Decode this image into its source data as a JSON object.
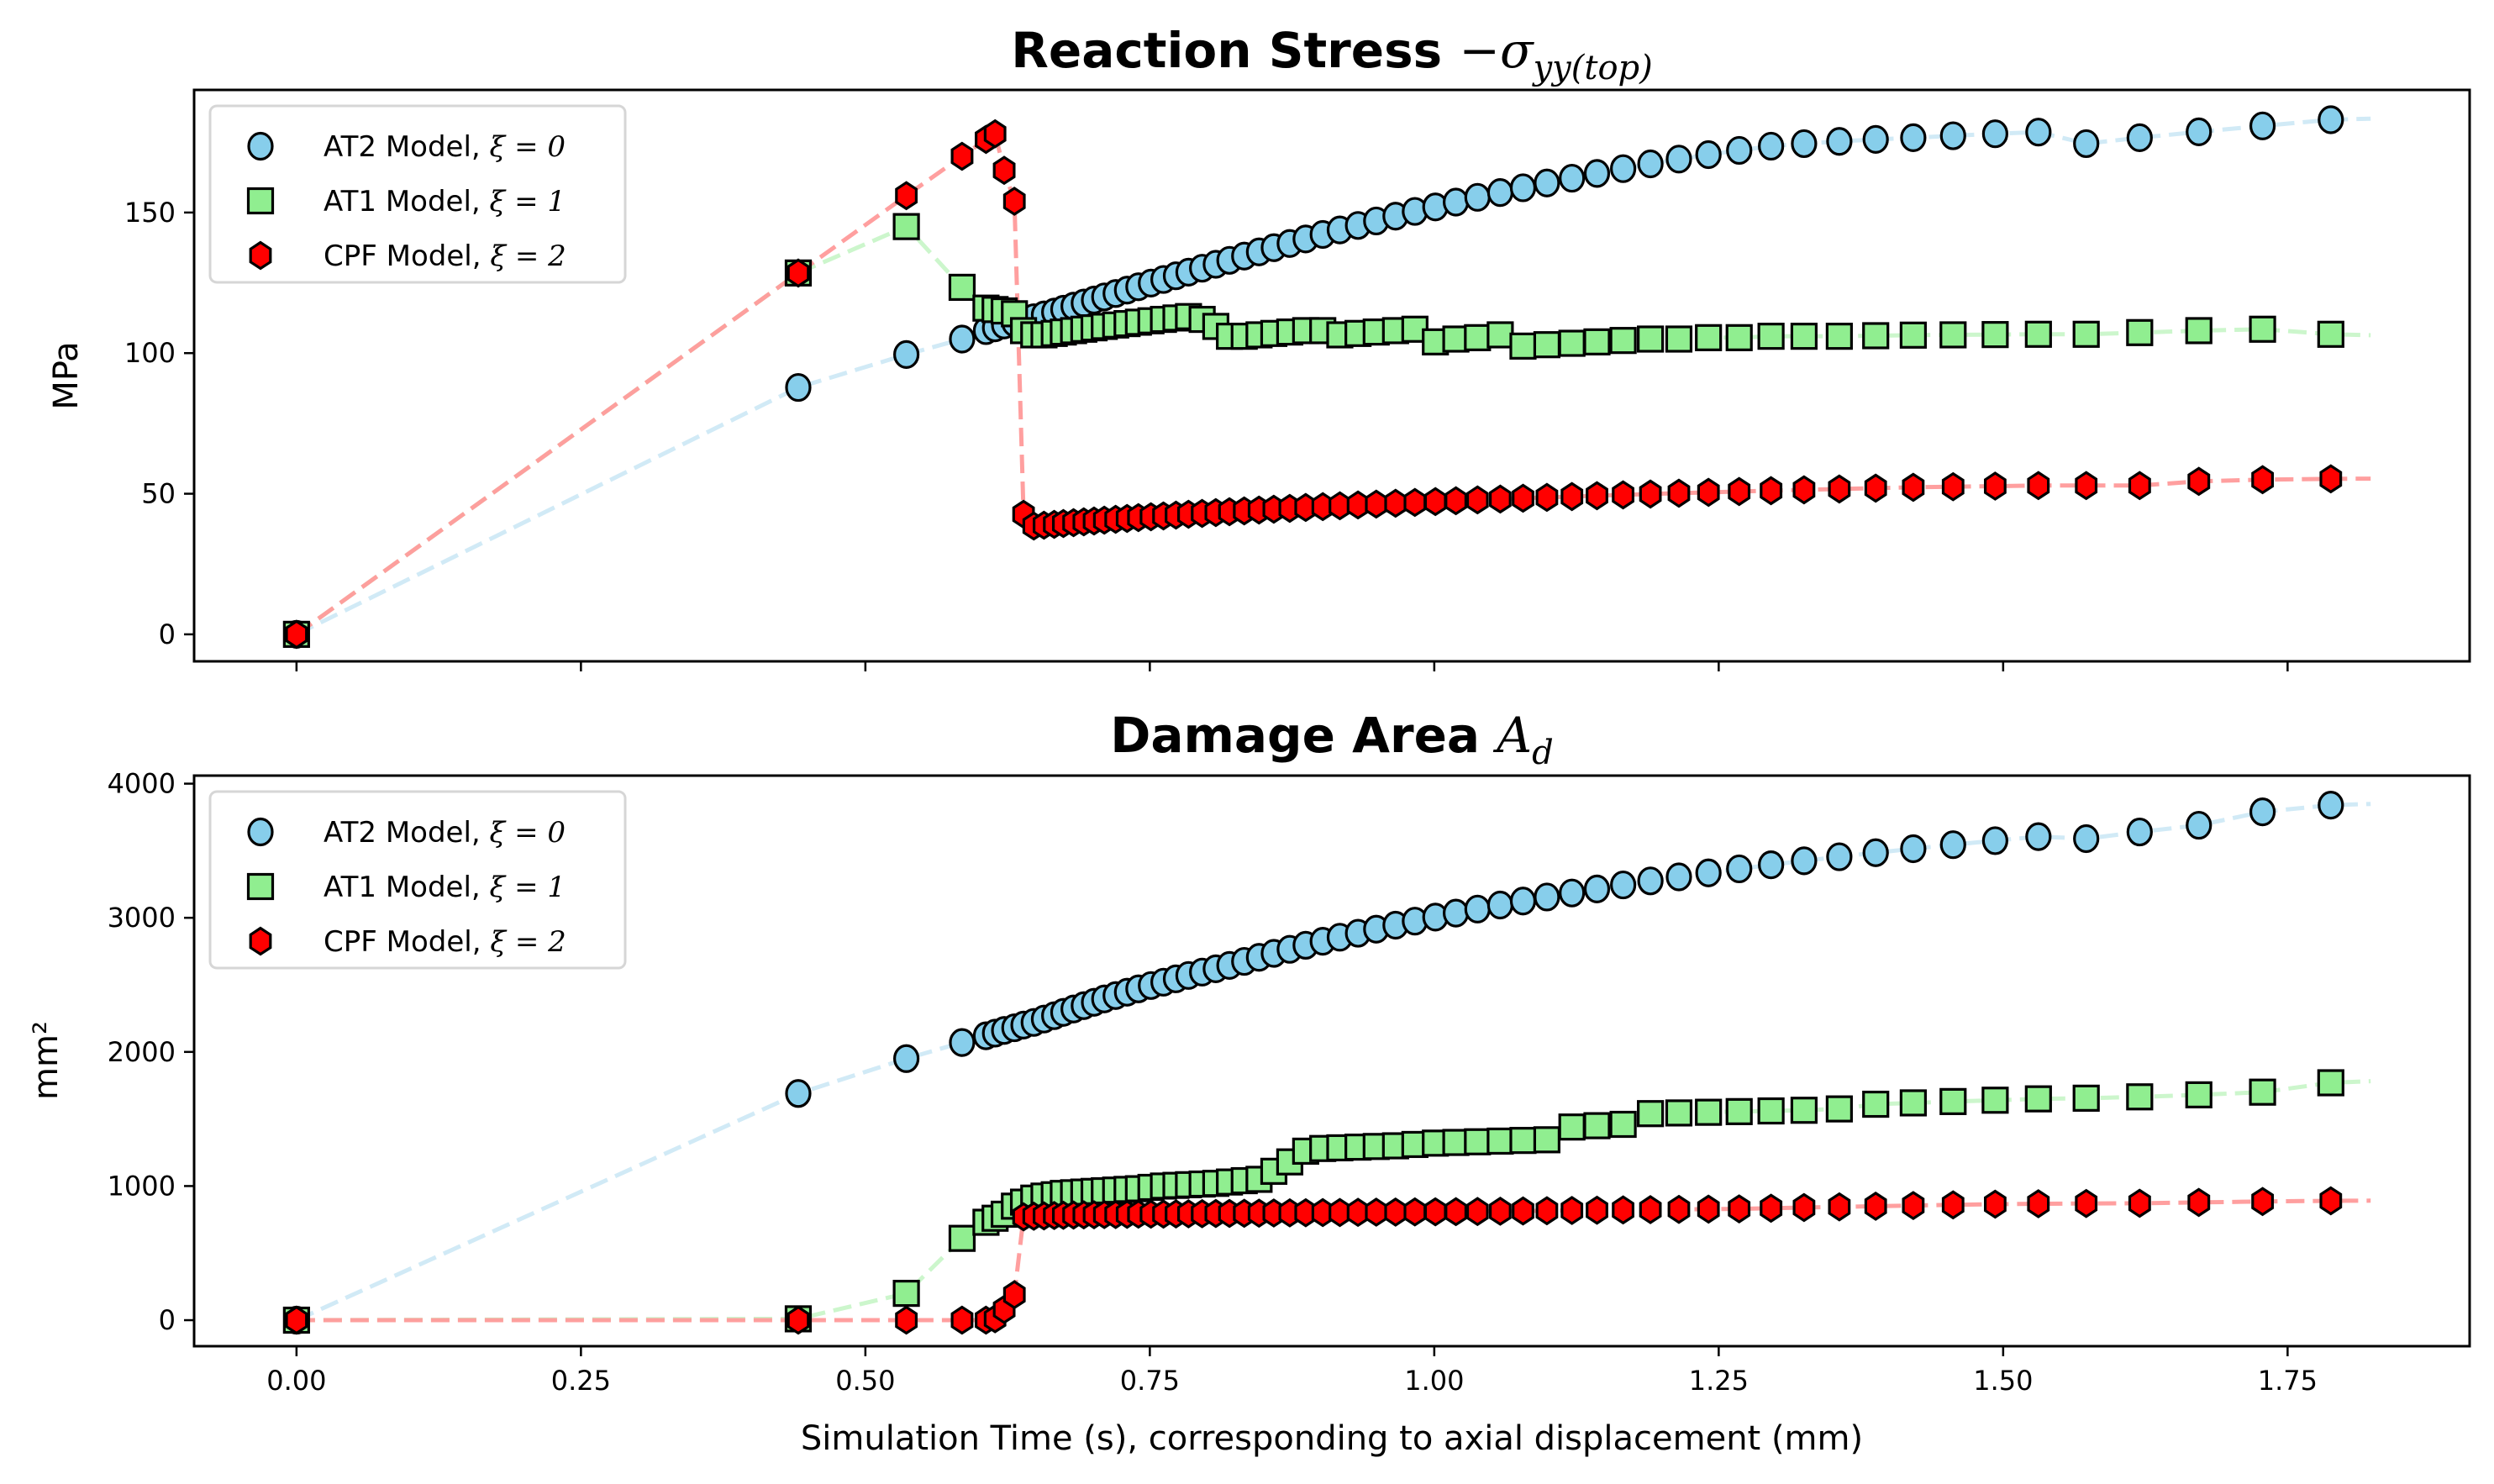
{
  "figure": {
    "xlabel": "Simulation Time (s), corresponding to axial displacement (mm)"
  },
  "chart_data": [
    {
      "type": "scatter",
      "title": "Reaction Stress",
      "title_math": "−σ",
      "title_sub": "yy(top)",
      "xlabel": "",
      "ylabel": "MPa",
      "xlim": [
        -0.09,
        1.91
      ],
      "ylim": [
        -9.6,
        193.6
      ],
      "xticks": [
        0.0,
        0.25,
        0.5,
        0.75,
        1.0,
        1.25,
        1.5,
        1.75
      ],
      "xtick_labels_visible": false,
      "yticks": [
        0,
        50,
        100,
        150
      ],
      "ytick_labels": [
        "0",
        "50",
        "100",
        "150"
      ],
      "grid": false,
      "legend_position": "upper-left",
      "series": [
        {
          "name": "AT2 Model, ξ = 0",
          "label_prefix": "AT2 Model, ",
          "label_math": "ξ = 0",
          "marker": "circle",
          "color": "#87ceeb",
          "line_color": "#cfe9f6",
          "x": [
            0.0,
            0.441,
            0.536,
            0.585,
            0.606,
            0.614,
            0.622,
            0.631,
            0.639,
            0.648,
            0.657,
            0.666,
            0.674,
            0.683,
            0.692,
            0.701,
            0.71,
            0.72,
            0.73,
            0.74,
            0.751,
            0.762,
            0.773,
            0.784,
            0.796,
            0.808,
            0.82,
            0.833,
            0.846,
            0.859,
            0.873,
            0.887,
            0.902,
            0.917,
            0.933,
            0.949,
            0.966,
            0.983,
            1.001,
            1.019,
            1.038,
            1.058,
            1.078,
            1.099,
            1.121,
            1.143,
            1.166,
            1.19,
            1.215,
            1.241,
            1.268,
            1.296,
            1.325,
            1.356,
            1.388,
            1.421,
            1.456,
            1.493,
            1.531,
            1.573,
            1.62,
            1.672,
            1.728,
            1.788
          ],
          "y": [
            0,
            87.8,
            99.5,
            105.0,
            108.0,
            109.0,
            110.0,
            110.8,
            111.6,
            112.6,
            113.6,
            114.6,
            115.6,
            116.7,
            117.8,
            118.9,
            120.0,
            121.2,
            122.4,
            123.6,
            124.9,
            126.2,
            127.5,
            128.8,
            130.2,
            131.6,
            133.0,
            134.5,
            136.0,
            137.5,
            139.0,
            140.6,
            142.2,
            143.8,
            145.4,
            147.0,
            148.7,
            150.4,
            152.0,
            153.7,
            155.4,
            157.1,
            158.8,
            160.5,
            162.2,
            163.9,
            165.6,
            167.3,
            169.0,
            170.6,
            172.1,
            173.6,
            174.5,
            175.3,
            176.0,
            176.6,
            177.3,
            178.0,
            178.6,
            174.5,
            176.6,
            178.7,
            180.8,
            183.0
          ]
        },
        {
          "name": "AT1 Model, ξ = 1",
          "label_prefix": "AT1 Model, ",
          "label_math": "ξ = 1",
          "marker": "square",
          "color": "#90ee90",
          "line_color": "#c9f5c9",
          "x": [
            0.0,
            0.441,
            0.536,
            0.585,
            0.606,
            0.614,
            0.622,
            0.631,
            0.639,
            0.648,
            0.657,
            0.666,
            0.674,
            0.683,
            0.692,
            0.701,
            0.71,
            0.72,
            0.73,
            0.74,
            0.751,
            0.762,
            0.773,
            0.784,
            0.796,
            0.808,
            0.82,
            0.833,
            0.846,
            0.859,
            0.873,
            0.887,
            0.902,
            0.917,
            0.933,
            0.949,
            0.966,
            0.983,
            1.001,
            1.019,
            1.038,
            1.058,
            1.078,
            1.099,
            1.121,
            1.143,
            1.166,
            1.19,
            1.215,
            1.241,
            1.268,
            1.296,
            1.325,
            1.356,
            1.388,
            1.421,
            1.456,
            1.493,
            1.531,
            1.573,
            1.62,
            1.672,
            1.728,
            1.788
          ],
          "y": [
            0,
            128.5,
            145.0,
            123.4,
            116.0,
            115.5,
            115.0,
            114.0,
            108.0,
            106.5,
            106.5,
            107.0,
            107.5,
            108.0,
            108.5,
            109.0,
            109.5,
            110.0,
            110.5,
            111.0,
            111.5,
            112.0,
            112.5,
            113.0,
            112.0,
            109.5,
            106.0,
            106.0,
            106.5,
            107.0,
            107.5,
            108.0,
            108.0,
            106.5,
            107.0,
            107.5,
            108.0,
            108.5,
            104.0,
            105.0,
            105.5,
            106.5,
            102.5,
            103.0,
            103.5,
            104.0,
            104.5,
            105.0,
            105.0,
            105.5,
            105.5,
            106.0,
            106.0,
            106.0,
            106.2,
            106.4,
            106.5,
            106.6,
            106.7,
            106.7,
            107.3,
            108.0,
            108.5,
            106.7
          ]
        },
        {
          "name": "CPF Model, ξ = 2",
          "label_prefix": "CPF Model, ",
          "label_math": "ξ = 2",
          "marker": "hexagon",
          "color": "#ff0000",
          "line_color": "#ff9a9a",
          "x": [
            0.0,
            0.441,
            0.536,
            0.585,
            0.606,
            0.614,
            0.622,
            0.631,
            0.639,
            0.648,
            0.657,
            0.666,
            0.674,
            0.683,
            0.692,
            0.701,
            0.71,
            0.72,
            0.73,
            0.74,
            0.751,
            0.762,
            0.773,
            0.784,
            0.796,
            0.808,
            0.82,
            0.833,
            0.846,
            0.859,
            0.873,
            0.887,
            0.902,
            0.917,
            0.933,
            0.949,
            0.966,
            0.983,
            1.001,
            1.019,
            1.038,
            1.058,
            1.078,
            1.099,
            1.121,
            1.143,
            1.166,
            1.19,
            1.215,
            1.241,
            1.268,
            1.296,
            1.325,
            1.356,
            1.388,
            1.421,
            1.456,
            1.493,
            1.531,
            1.573,
            1.62,
            1.672,
            1.728,
            1.788
          ],
          "y": [
            0,
            128.5,
            156.0,
            170.0,
            176.0,
            178.0,
            165.0,
            154.0,
            42.7,
            38.5,
            38.8,
            39.1,
            39.4,
            39.7,
            40.0,
            40.3,
            40.6,
            40.9,
            41.2,
            41.5,
            41.8,
            42.1,
            42.4,
            42.7,
            43.0,
            43.3,
            43.6,
            43.9,
            44.2,
            44.5,
            44.8,
            45.1,
            45.4,
            45.7,
            46.0,
            46.3,
            46.6,
            46.9,
            47.2,
            47.5,
            47.8,
            48.1,
            48.4,
            48.7,
            49.0,
            49.3,
            49.6,
            49.9,
            50.2,
            50.5,
            50.8,
            51.1,
            51.4,
            51.7,
            52.0,
            52.3,
            52.5,
            52.7,
            52.9,
            52.9,
            52.9,
            54.4,
            55.0,
            55.3
          ]
        }
      ]
    },
    {
      "type": "scatter",
      "title": "Damage Area",
      "title_math": "A",
      "title_sub": "d",
      "xlabel": "Simulation Time (s), corresponding to axial displacement (mm)",
      "ylabel": "mm²",
      "xlim": [
        -0.09,
        1.91
      ],
      "ylim": [
        -194,
        4060
      ],
      "xticks": [
        0.0,
        0.25,
        0.5,
        0.75,
        1.0,
        1.25,
        1.5,
        1.75
      ],
      "xtick_labels": [
        "0.00",
        "0.25",
        "0.50",
        "0.75",
        "1.00",
        "1.25",
        "1.50",
        "1.75"
      ],
      "yticks": [
        0,
        1000,
        2000,
        3000,
        4000
      ],
      "ytick_labels": [
        "0",
        "1000",
        "2000",
        "3000",
        "4000"
      ],
      "grid": false,
      "legend_position": "upper-left",
      "series": [
        {
          "name": "AT2 Model, ξ = 0",
          "label_prefix": "AT2 Model, ",
          "label_math": "ξ = 0",
          "marker": "circle",
          "color": "#87ceeb",
          "line_color": "#cfe9f6",
          "x": [
            0.0,
            0.441,
            0.536,
            0.585,
            0.606,
            0.614,
            0.622,
            0.631,
            0.639,
            0.648,
            0.657,
            0.666,
            0.674,
            0.683,
            0.692,
            0.701,
            0.71,
            0.72,
            0.73,
            0.74,
            0.751,
            0.762,
            0.773,
            0.784,
            0.796,
            0.808,
            0.82,
            0.833,
            0.846,
            0.859,
            0.873,
            0.887,
            0.902,
            0.917,
            0.933,
            0.949,
            0.966,
            0.983,
            1.001,
            1.019,
            1.038,
            1.058,
            1.078,
            1.099,
            1.121,
            1.143,
            1.166,
            1.19,
            1.215,
            1.241,
            1.268,
            1.296,
            1.325,
            1.356,
            1.388,
            1.421,
            1.456,
            1.493,
            1.531,
            1.573,
            1.62,
            1.672,
            1.728,
            1.788
          ],
          "y": [
            0,
            1690,
            1950,
            2070,
            2120,
            2140,
            2160,
            2180,
            2200,
            2220,
            2245,
            2270,
            2295,
            2320,
            2345,
            2370,
            2395,
            2420,
            2445,
            2470,
            2495,
            2520,
            2545,
            2570,
            2595,
            2620,
            2645,
            2675,
            2705,
            2735,
            2765,
            2795,
            2825,
            2855,
            2885,
            2915,
            2945,
            2975,
            3005,
            3035,
            3065,
            3095,
            3125,
            3155,
            3185,
            3215,
            3245,
            3275,
            3305,
            3335,
            3365,
            3395,
            3425,
            3455,
            3485,
            3515,
            3545,
            3575,
            3605,
            3590,
            3640,
            3690,
            3790,
            3840
          ]
        },
        {
          "name": "AT1 Model, ξ = 1",
          "label_prefix": "AT1 Model, ",
          "label_math": "ξ = 1",
          "marker": "square",
          "color": "#90ee90",
          "line_color": "#c9f5c9",
          "x": [
            0.0,
            0.441,
            0.536,
            0.585,
            0.606,
            0.614,
            0.622,
            0.631,
            0.639,
            0.648,
            0.657,
            0.666,
            0.674,
            0.683,
            0.692,
            0.701,
            0.71,
            0.72,
            0.73,
            0.74,
            0.751,
            0.762,
            0.773,
            0.784,
            0.796,
            0.808,
            0.82,
            0.833,
            0.846,
            0.859,
            0.873,
            0.887,
            0.902,
            0.917,
            0.933,
            0.949,
            0.966,
            0.983,
            1.001,
            1.019,
            1.038,
            1.058,
            1.078,
            1.099,
            1.121,
            1.143,
            1.166,
            1.19,
            1.215,
            1.241,
            1.268,
            1.296,
            1.325,
            1.356,
            1.388,
            1.421,
            1.456,
            1.493,
            1.531,
            1.573,
            1.62,
            1.672,
            1.728,
            1.788
          ],
          "y": [
            0,
            10,
            200,
            610,
            730,
            760,
            790,
            850,
            880,
            910,
            925,
            935,
            945,
            950,
            955,
            960,
            965,
            970,
            975,
            980,
            990,
            1000,
            1005,
            1010,
            1015,
            1020,
            1030,
            1040,
            1050,
            1110,
            1180,
            1260,
            1280,
            1285,
            1290,
            1295,
            1300,
            1310,
            1320,
            1325,
            1330,
            1335,
            1340,
            1345,
            1440,
            1450,
            1460,
            1540,
            1545,
            1550,
            1555,
            1560,
            1565,
            1575,
            1610,
            1620,
            1630,
            1640,
            1650,
            1655,
            1665,
            1680,
            1700,
            1770
          ]
        },
        {
          "name": "CPF Model, ξ = 2",
          "label_prefix": "CPF Model, ",
          "label_math": "ξ = 2",
          "marker": "hexagon",
          "color": "#ff0000",
          "line_color": "#ff9a9a",
          "x": [
            0.0,
            0.441,
            0.536,
            0.585,
            0.606,
            0.614,
            0.622,
            0.631,
            0.639,
            0.648,
            0.657,
            0.666,
            0.674,
            0.683,
            0.692,
            0.701,
            0.71,
            0.72,
            0.73,
            0.74,
            0.751,
            0.762,
            0.773,
            0.784,
            0.796,
            0.808,
            0.82,
            0.833,
            0.846,
            0.859,
            0.873,
            0.887,
            0.902,
            0.917,
            0.933,
            0.949,
            0.966,
            0.983,
            1.001,
            1.019,
            1.038,
            1.058,
            1.078,
            1.099,
            1.121,
            1.143,
            1.166,
            1.19,
            1.215,
            1.241,
            1.268,
            1.296,
            1.325,
            1.356,
            1.388,
            1.421,
            1.456,
            1.493,
            1.531,
            1.573,
            1.62,
            1.672,
            1.728,
            1.788
          ],
          "y": [
            0,
            0,
            0,
            0,
            0,
            10,
            80,
            190,
            770,
            775,
            778,
            780,
            782,
            784,
            785,
            786,
            787,
            788,
            789,
            790,
            790,
            791,
            792,
            793,
            794,
            795,
            796,
            797,
            798,
            799,
            800,
            801,
            802,
            803,
            804,
            805,
            806,
            807,
            808,
            809,
            810,
            812,
            814,
            816,
            818,
            820,
            822,
            824,
            826,
            828,
            830,
            835,
            840,
            845,
            850,
            855,
            860,
            865,
            868,
            870,
            872,
            878,
            885,
            890
          ]
        }
      ]
    }
  ]
}
